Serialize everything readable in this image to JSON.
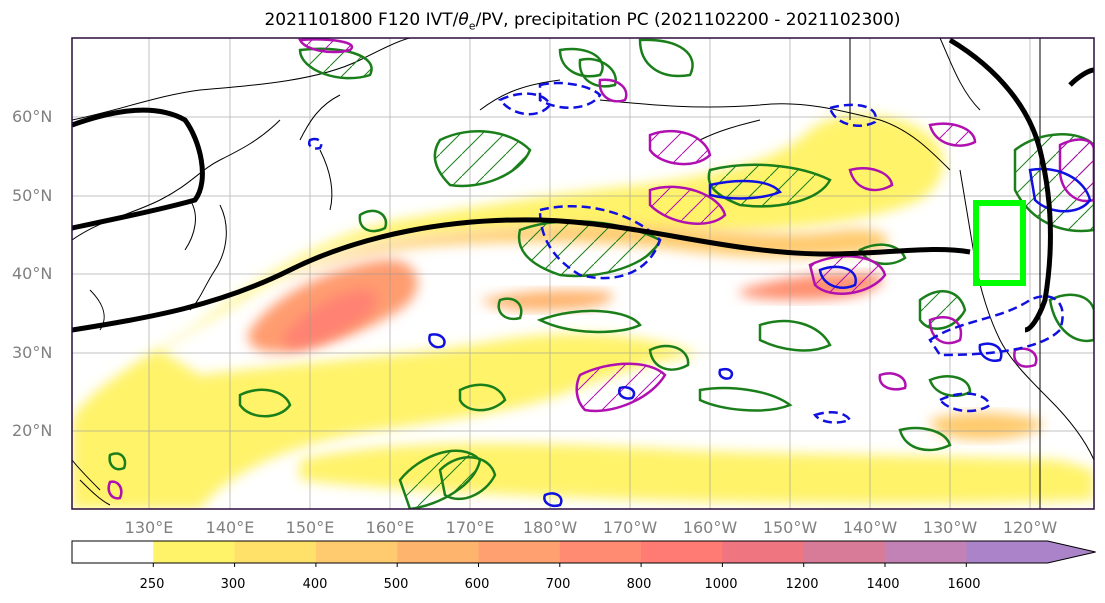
{
  "title": {
    "prefix": "2021101800 F120 IVT/",
    "theta": "θ",
    "sub": "e",
    "suffix": "/PV, precipitation PC (2021102200 - 2021102300)"
  },
  "lat_labels": [
    "60°N",
    "50°N",
    "40°N",
    "30°N",
    "20°N"
  ],
  "lon_labels": [
    "130°E",
    "140°E",
    "150°E",
    "160°E",
    "170°E",
    "180°W",
    "170°W",
    "160°W",
    "150°W",
    "140°W",
    "130°W",
    "120°W"
  ],
  "colorbar": {
    "ticks": [
      "250",
      "300",
      "400",
      "500",
      "600",
      "700",
      "800",
      "1000",
      "1200",
      "1400",
      "1600"
    ],
    "colors": [
      "#ffffff",
      "#fff36a",
      "#ffe16a",
      "#ffcb6e",
      "#ffb46e",
      "#ffa070",
      "#ff8c72",
      "#ff7b73",
      "#ef7580",
      "#d87b98",
      "#c382b6",
      "#ab83c8"
    ]
  },
  "colors": {
    "frame": "#2b0b3d",
    "contour_theta": "#1a7f1a",
    "contour_pv": "#b010b0",
    "contour_blue": "#1010e0",
    "highlight_box": "#00ff00",
    "jet_line": "#000000"
  }
}
